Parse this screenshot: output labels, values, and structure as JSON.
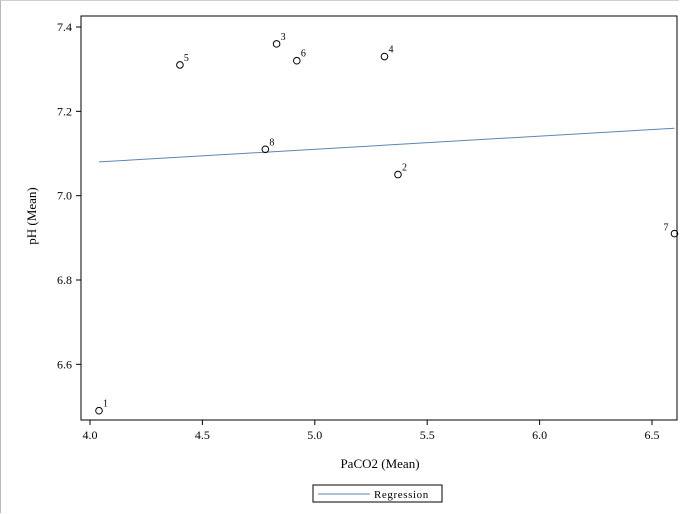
{
  "chart_data": {
    "type": "scatter",
    "xlabel": "PaCO2 (Mean)",
    "ylabel": "pH (Mean)",
    "xlim": [
      4.0,
      6.6
    ],
    "ylim": [
      6.47,
      7.41
    ],
    "x_ticks": [
      "4.0",
      "4.5",
      "5.0",
      "5.5",
      "6.0",
      "6.5"
    ],
    "y_ticks": [
      "6.6",
      "6.8",
      "7.0",
      "7.2",
      "7.4"
    ],
    "grid": false,
    "points": [
      {
        "label": "1",
        "x": 4.04,
        "y": 6.49
      },
      {
        "label": "2",
        "x": 5.37,
        "y": 7.05
      },
      {
        "label": "3",
        "x": 4.83,
        "y": 7.36
      },
      {
        "label": "4",
        "x": 5.31,
        "y": 7.33
      },
      {
        "label": "5",
        "x": 4.4,
        "y": 7.31
      },
      {
        "label": "6",
        "x": 4.92,
        "y": 7.32
      },
      {
        "label": "7",
        "x": 6.6,
        "y": 6.91
      },
      {
        "label": "8",
        "x": 4.78,
        "y": 7.11
      }
    ],
    "regression": {
      "name": "Regression",
      "x": [
        4.04,
        6.6
      ],
      "y": [
        7.08,
        7.16
      ]
    },
    "legend": {
      "position": "bottom-center",
      "entries": [
        "Regression"
      ]
    },
    "colors": {
      "marker": "#000000",
      "regression": "#5b86b4",
      "axis": "#000000"
    }
  }
}
